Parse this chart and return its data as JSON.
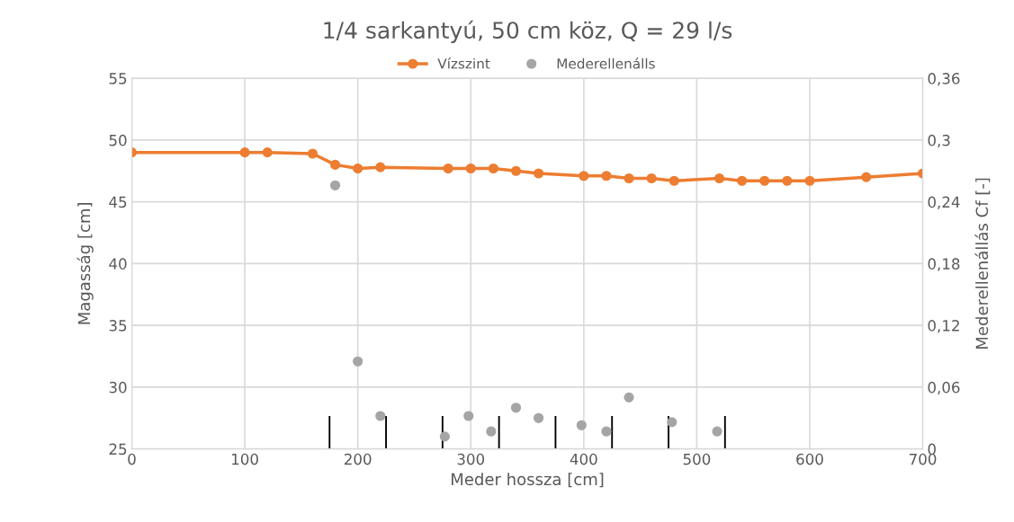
{
  "chart_data": {
    "type": "line",
    "title": "1/4 sarkantyú, 50 cm köz, Q = 29 l/s",
    "xlabel": "Meder hossza [cm]",
    "ylabel": "Magasság [cm]",
    "y2label": "Mederellenállás Cf [-]",
    "xlim": [
      0,
      700
    ],
    "xticks": [
      0,
      100,
      200,
      300,
      400,
      500,
      600,
      700
    ],
    "ylim": [
      25,
      55
    ],
    "yticks": [
      25,
      30,
      35,
      40,
      45,
      50,
      55
    ],
    "y2lim": [
      0,
      0.36
    ],
    "y2ticks": [
      {
        "value": 0,
        "label": "0"
      },
      {
        "value": 0.06,
        "label": "0,06"
      },
      {
        "value": 0.12,
        "label": "0,12"
      },
      {
        "value": 0.18,
        "label": "0,18"
      },
      {
        "value": 0.24,
        "label": "0,24"
      },
      {
        "value": 0.3,
        "label": "0,3"
      },
      {
        "value": 0.36,
        "label": "0,36"
      }
    ],
    "grid": true,
    "legend": "top",
    "marker": "circle",
    "line_style": "solid",
    "series": [
      {
        "name": "Vízszint",
        "color": "#ed7d31",
        "x": [
          0,
          100,
          120,
          160,
          180,
          200,
          220,
          280,
          300,
          320,
          340,
          360,
          400,
          420,
          440,
          460,
          480,
          520,
          540,
          560,
          580,
          600,
          650,
          700
        ],
        "values": [
          49.0,
          49.0,
          49.0,
          48.9,
          48.0,
          47.7,
          47.8,
          47.7,
          47.7,
          47.7,
          47.5,
          47.3,
          47.1,
          47.1,
          46.9,
          46.9,
          46.7,
          46.9,
          46.7,
          46.7,
          46.7,
          46.7,
          47.0,
          47.3
        ]
      },
      {
        "name": "Mederellenálls",
        "type": "scatter",
        "axis": "y2",
        "color": "#a5a5a5",
        "x": [
          180,
          200,
          220,
          277,
          298,
          318,
          340,
          360,
          398,
          420,
          440,
          478,
          518
        ],
        "values": [
          0.256,
          0.085,
          0.032,
          0.012,
          0.032,
          0.017,
          0.04,
          0.03,
          0.023,
          0.017,
          0.05,
          0.026,
          0.017
        ]
      },
      {
        "type": "bar",
        "axis": "y2",
        "color": "#000000",
        "x": [
          175,
          225,
          275,
          325,
          375,
          425,
          475,
          525
        ],
        "values": [
          0.032,
          0.032,
          0.032,
          0.032,
          0.032,
          0.032,
          0.032,
          0.032
        ]
      }
    ]
  }
}
